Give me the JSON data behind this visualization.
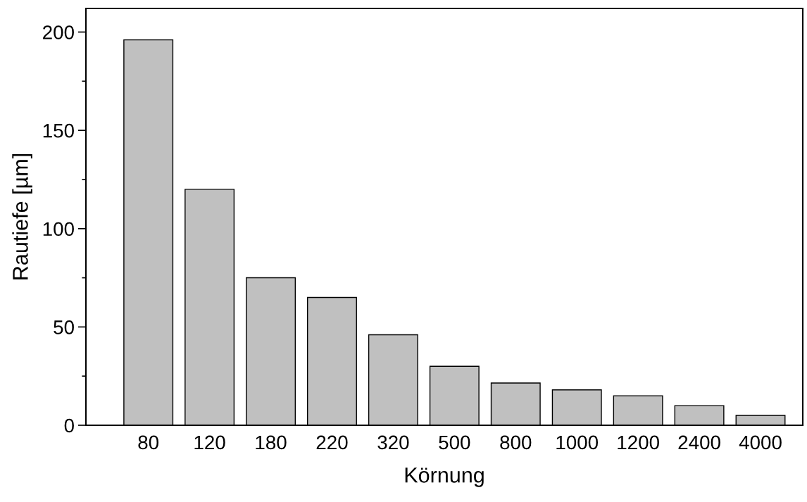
{
  "chart_data": {
    "type": "bar",
    "xlabel": "Körnung",
    "ylabel": "Rautiefe [µm]",
    "categories": [
      "80",
      "120",
      "180",
      "220",
      "320",
      "500",
      "800",
      "1000",
      "1200",
      "2400",
      "4000"
    ],
    "values": [
      196,
      120,
      75,
      65,
      46,
      30,
      21.5,
      18,
      15,
      10,
      5
    ],
    "color": "#c0c0c0",
    "ylim": [
      0,
      212
    ],
    "yticks": [
      0,
      50,
      100,
      150,
      200
    ],
    "grid": false,
    "legend": false
  }
}
